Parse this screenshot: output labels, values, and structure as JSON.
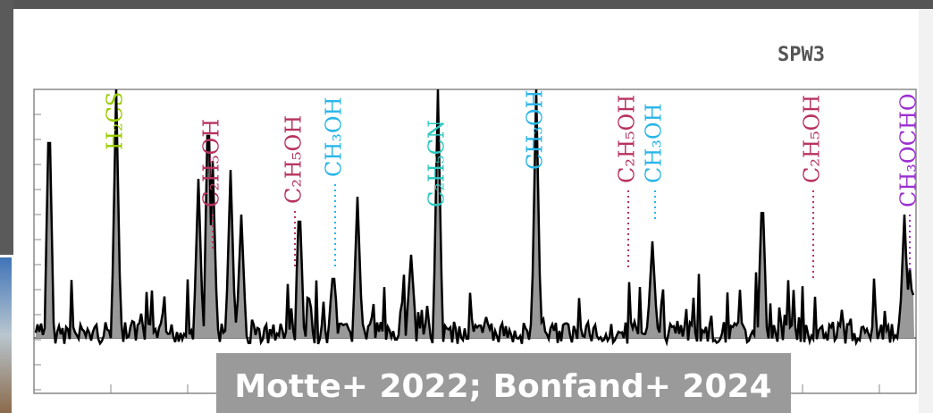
{
  "panel_label": "SPW3",
  "line_labels": [
    {
      "text": "H₂CS",
      "color": "#99cc00"
    },
    {
      "text": "C₂H₅OH",
      "color": "#b8335e"
    },
    {
      "text": "C₂H₅OH",
      "color": "#b8335e"
    },
    {
      "text": "CH₃OH",
      "color": "#29b6e8"
    },
    {
      "text": "C₂H₅CN",
      "color": "#2cc9c0"
    },
    {
      "text": "CH₃OH",
      "color": "#29b6e8"
    },
    {
      "text": "C₂H₅OH",
      "color": "#b8335e"
    },
    {
      "text": "CH₃OH",
      "color": "#29b6e8"
    },
    {
      "text": "C₂H₅OH",
      "color": "#b8335e"
    },
    {
      "text": "CH₃OCHO",
      "color": "#9b30d0"
    }
  ],
  "caption": "Motte+ 2022; Bonfand+ 2024"
}
